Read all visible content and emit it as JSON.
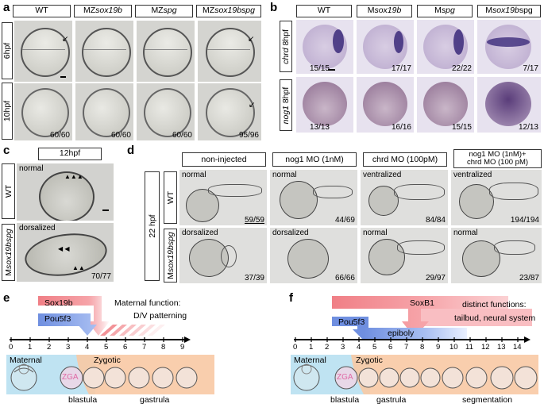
{
  "panels": {
    "a": {
      "label": "a",
      "columns": [
        "WT",
        "MZ",
        "MZ",
        "MZ"
      ],
      "columns_italic": [
        "",
        "sox19b",
        "spg",
        "sox19bspg"
      ],
      "rows": [
        "6hpf",
        "10hpf"
      ],
      "counts_10hpf": [
        "60/60",
        "60/60",
        "60/60",
        "95/96"
      ]
    },
    "b": {
      "label": "b",
      "columns": [
        "WT",
        "M",
        "M",
        "M"
      ],
      "columns_italic": [
        "",
        "sox19b",
        "spg",
        "sox19b"
      ],
      "columns_suffix": [
        "",
        "",
        "",
        "spg"
      ],
      "rows": [
        "chrd",
        "nog1"
      ],
      "rows_suffix": [
        " 8hpf",
        " 8hpf"
      ],
      "counts_chrd": [
        "15/15",
        "17/17",
        "22/22",
        "7/17"
      ],
      "counts_nog1": [
        "13/13",
        "16/16",
        "15/15",
        "12/13"
      ]
    },
    "c": {
      "label": "c",
      "title": "12hpf",
      "rows": [
        "WT",
        "Msox19bspg"
      ],
      "phenotypes": [
        "normal",
        "dorsalized"
      ],
      "count": "70/77"
    },
    "d": {
      "label": "d",
      "stage": "22 hpf",
      "columns": [
        "non-injected",
        "nog1 MO (1nM)",
        "chrd MO (100pM)"
      ],
      "last_column_line1": "nog1 MO (1nM)+",
      "last_column_line2": "chrd MO (100 pM)",
      "rows": [
        "WT",
        "Msox19bspg"
      ],
      "phenotypes_wt": [
        "normal",
        "normal",
        "ventralized",
        "ventralized"
      ],
      "phenotypes_mut": [
        "dorsalized",
        "dorsalized",
        "normal",
        "normal"
      ],
      "counts_wt": [
        "59/59",
        "44/69",
        "84/84",
        "194/194"
      ],
      "counts_mut": [
        "37/39",
        "66/66",
        "29/97",
        "23/87"
      ]
    },
    "e": {
      "label": "e",
      "factor1": "Sox19b",
      "factor2": "Pou5f3",
      "func_line1": "Maternal function:",
      "func_line2": "D/V patterning",
      "ticks": [
        "0",
        "1",
        "2",
        "3",
        "4",
        "5",
        "6",
        "7",
        "8",
        "9"
      ],
      "maternal": "Maternal",
      "zga": "ZGA",
      "zygotic": "Zygotic",
      "blastula": "blastula",
      "gastrula": "gastrula"
    },
    "f": {
      "label": "f",
      "factor1": "SoxB1",
      "factor2": "Pou5f3",
      "func_line1": "distinct functions:",
      "func_line2": "tailbud, neural system",
      "epiboly": "epiboly",
      "ticks": [
        "0",
        "1",
        "2",
        "3",
        "4",
        "5",
        "6",
        "7",
        "8",
        "9",
        "10",
        "11",
        "12",
        "13",
        "14"
      ],
      "maternal": "Maternal",
      "zga": "ZGA",
      "zygotic": "Zygotic",
      "blastula": "blastula",
      "gastrula": "gastrula",
      "segmentation": "segmentation"
    }
  },
  "colors": {
    "red_arrow": "#f07f86",
    "blue_arrow": "#6f8fe0",
    "peach": "#f8c9a4",
    "lightblue": "#bfe3f2",
    "zga_pink": "#e06aa6",
    "stain": "#3b2a7a"
  }
}
